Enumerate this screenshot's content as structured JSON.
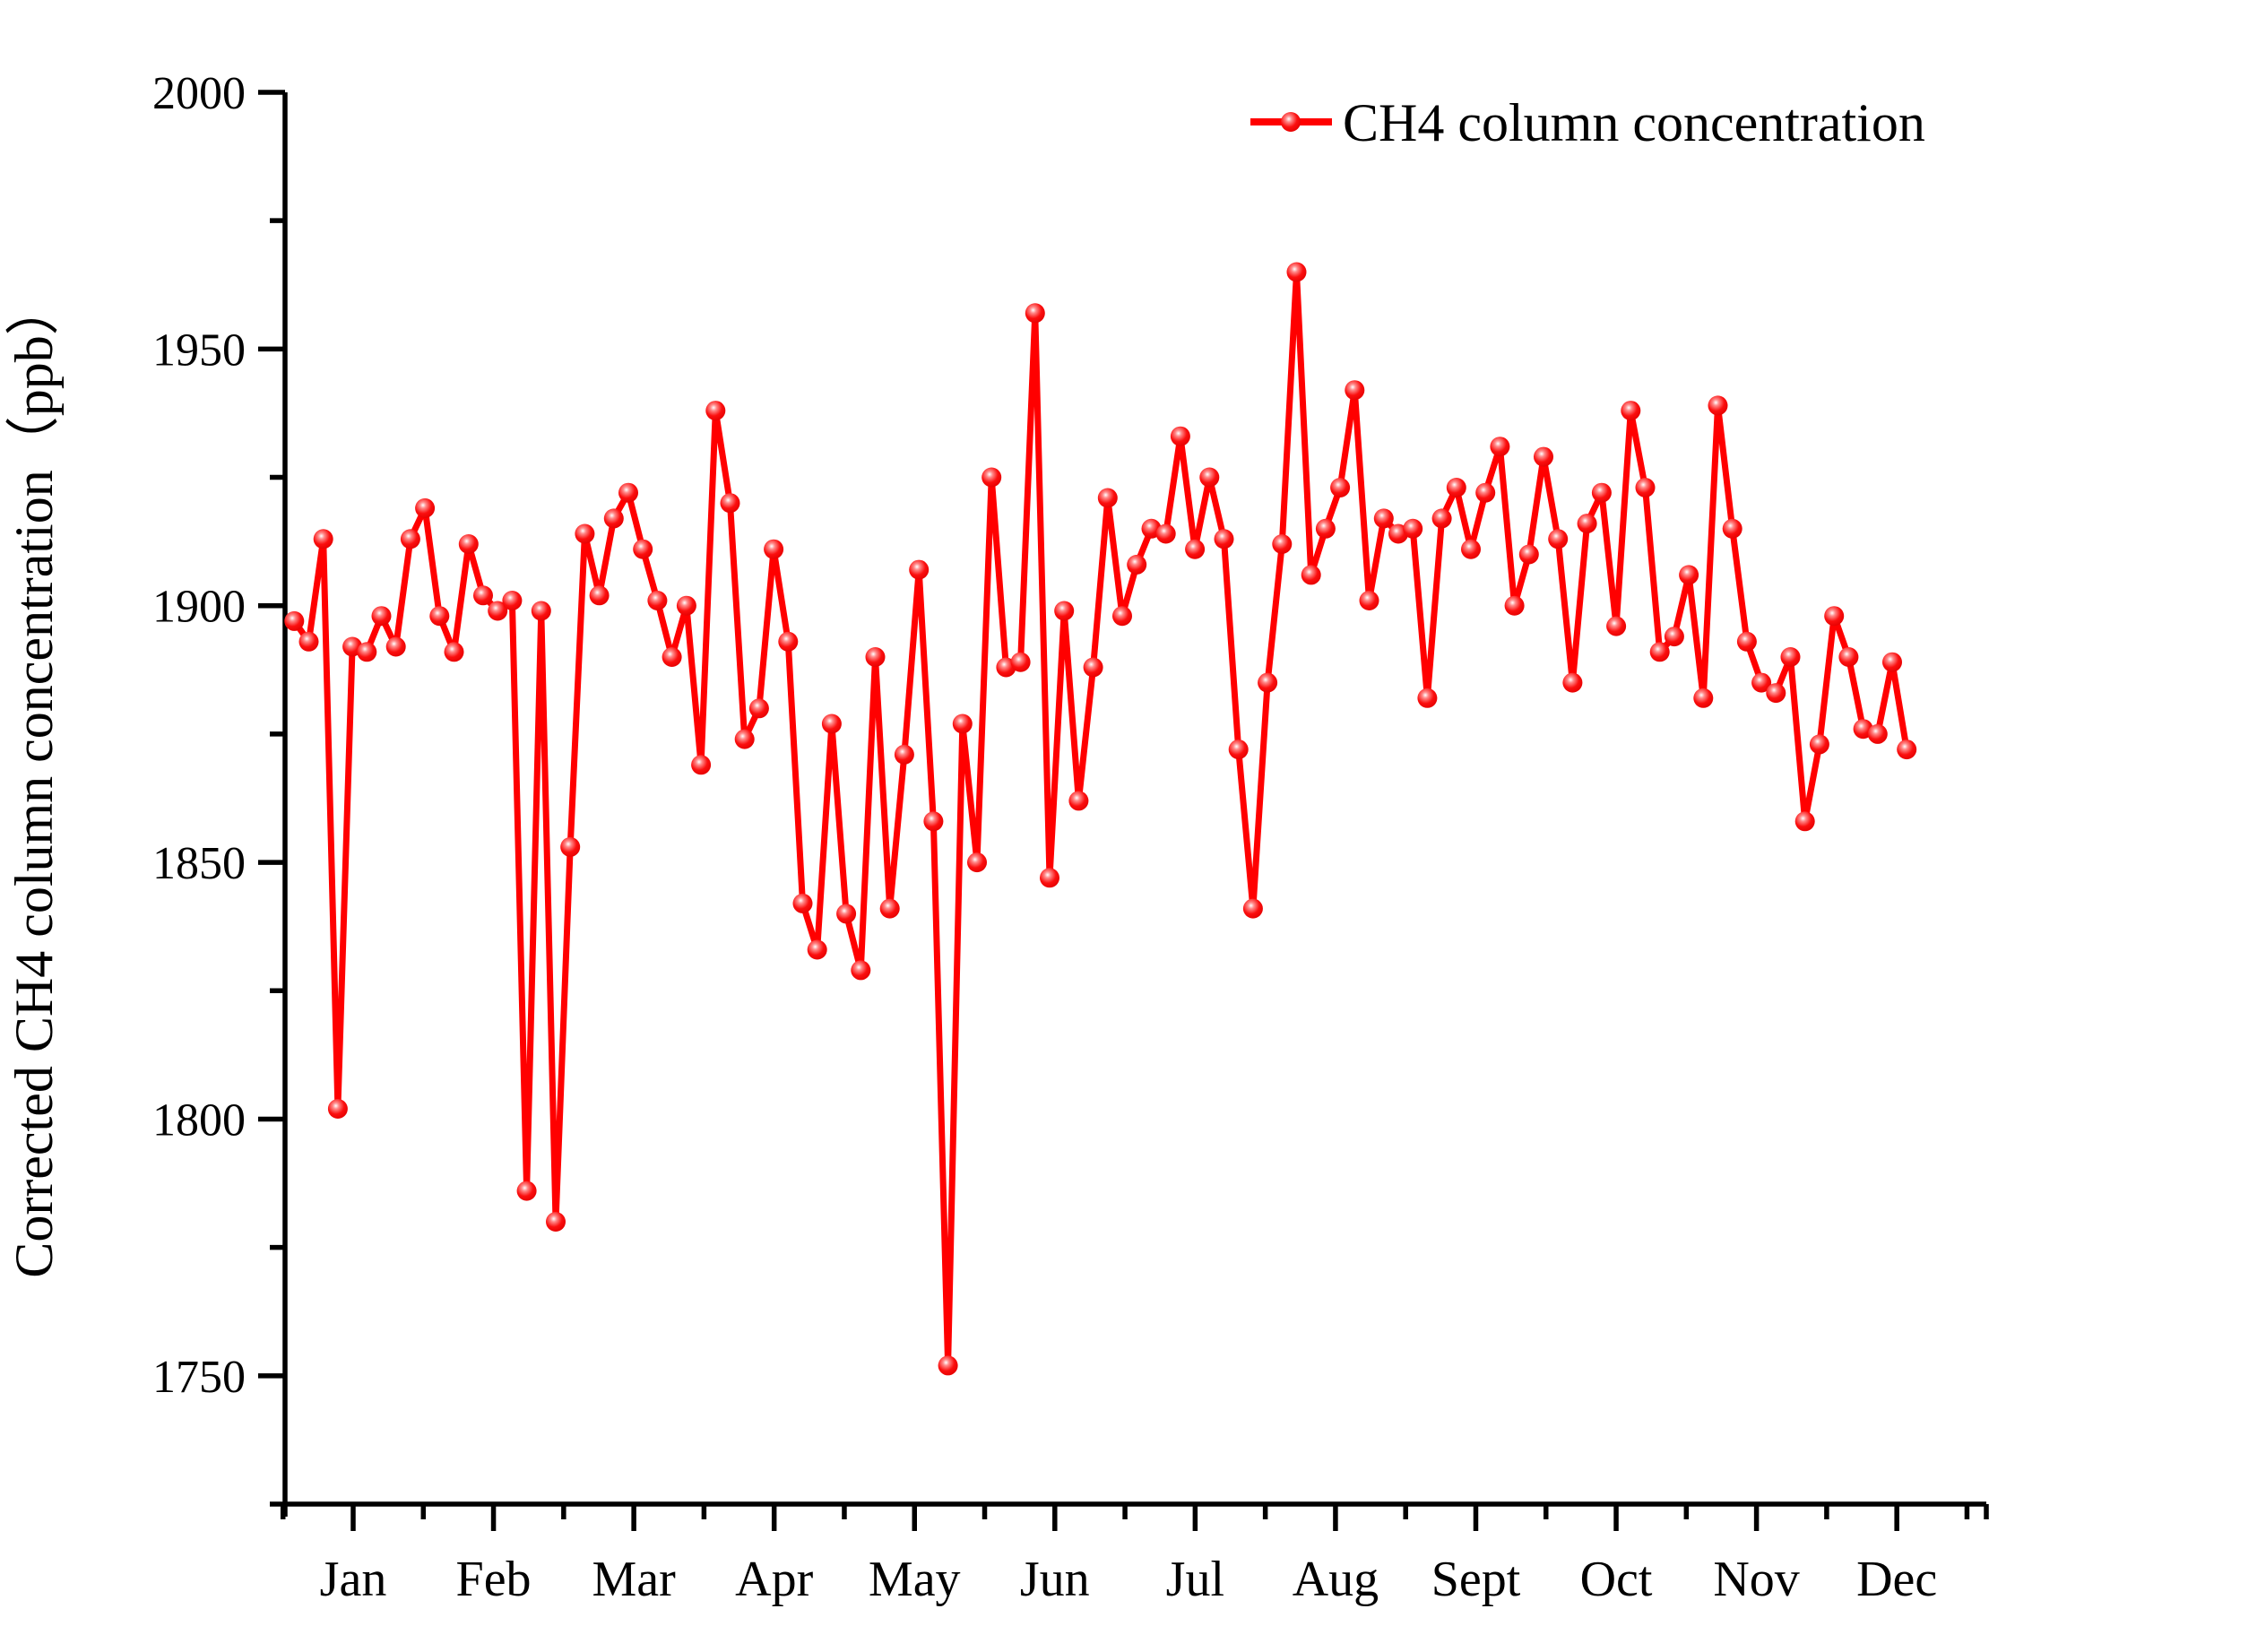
{
  "chart_data": {
    "type": "line",
    "title": "",
    "xlabel": "",
    "ylabel": "Corrected CH4 column concentration（ppb）",
    "legend": [
      "CH4 column concentration"
    ],
    "line_color": "#FF0000",
    "axis_color": "#000000",
    "grid": false,
    "legend_position": "top-right",
    "x_categories": [
      "Jan",
      "Feb",
      "Mar",
      "Apr",
      "May",
      "Jun",
      "Jul",
      "Aug",
      "Sept",
      "Oct",
      "Nov",
      "Dec"
    ],
    "ylim": [
      1725,
      2000
    ],
    "yticks_major": [
      1750,
      1800,
      1850,
      1900,
      1950,
      2000
    ],
    "ytick_minor_step": 25,
    "x_days_per_year": 365,
    "series": [
      {
        "name": "CH4 column concentration",
        "start_day": 2,
        "end_day": 352,
        "values": [
          1897,
          1893,
          1913,
          1802,
          1892,
          1891,
          1898,
          1892,
          1913,
          1919,
          1898,
          1891,
          1912,
          1902,
          1899,
          1901,
          1786,
          1899,
          1780,
          1853,
          1914,
          1902,
          1917,
          1922,
          1911,
          1901,
          1890,
          1900,
          1869,
          1938,
          1920,
          1874,
          1880,
          1911,
          1893,
          1842,
          1833,
          1877,
          1840,
          1829,
          1890,
          1841,
          1871,
          1907,
          1858,
          1752,
          1877,
          1850,
          1925,
          1888,
          1889,
          1957,
          1847,
          1899,
          1862,
          1888,
          1921,
          1898,
          1908,
          1915,
          1914,
          1933,
          1911,
          1925,
          1913,
          1872,
          1841,
          1885,
          1912,
          1965,
          1906,
          1915,
          1923,
          1942,
          1901,
          1917,
          1914,
          1915,
          1882,
          1917,
          1923,
          1911,
          1922,
          1931,
          1900,
          1910,
          1929,
          1913,
          1885,
          1916,
          1922,
          1896,
          1938,
          1923,
          1891,
          1894,
          1906,
          1882,
          1939,
          1915,
          1893,
          1885,
          1883,
          1890,
          1858,
          1873,
          1898,
          1890,
          1876,
          1875,
          1889,
          1872
        ]
      }
    ]
  }
}
